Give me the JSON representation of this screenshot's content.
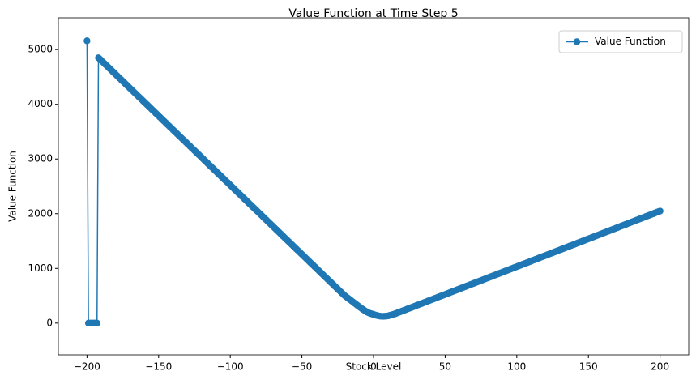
{
  "chart_data": {
    "type": "line",
    "title": "Value Function at Time Step 5",
    "xlabel": "Stock Level",
    "ylabel": "Value Function",
    "x": [
      -200,
      -199,
      -198,
      -197,
      -196,
      -195,
      -194,
      -193,
      -192,
      -191,
      -190,
      -189,
      -188,
      -187,
      -186,
      -185,
      -184,
      -183,
      -182,
      -181,
      -180,
      -179,
      -178,
      -177,
      -176,
      -175,
      -174,
      -173,
      -172,
      -171,
      -170,
      -169,
      -168,
      -167,
      -166,
      -165,
      -164,
      -163,
      -162,
      -161,
      -160,
      -159,
      -158,
      -157,
      -156,
      -155,
      -154,
      -153,
      -152,
      -151,
      -150,
      -149,
      -148,
      -147,
      -146,
      -145,
      -144,
      -143,
      -142,
      -141,
      -140,
      -139,
      -138,
      -137,
      -136,
      -135,
      -134,
      -133,
      -132,
      -131,
      -130,
      -129,
      -128,
      -127,
      -126,
      -125,
      -124,
      -123,
      -122,
      -121,
      -120,
      -119,
      -118,
      -117,
      -116,
      -115,
      -114,
      -113,
      -112,
      -111,
      -110,
      -109,
      -108,
      -107,
      -106,
      -105,
      -104,
      -103,
      -102,
      -101,
      -100,
      -99,
      -98,
      -97,
      -96,
      -95,
      -94,
      -93,
      -92,
      -91,
      -90,
      -89,
      -88,
      -87,
      -86,
      -85,
      -84,
      -83,
      -82,
      -81,
      -80,
      -79,
      -78,
      -77,
      -76,
      -75,
      -74,
      -73,
      -72,
      -71,
      -70,
      -69,
      -68,
      -67,
      -66,
      -65,
      -64,
      -63,
      -62,
      -61,
      -60,
      -59,
      -58,
      -57,
      -56,
      -55,
      -54,
      -53,
      -52,
      -51,
      -50,
      -49,
      -48,
      -47,
      -46,
      -45,
      -44,
      -43,
      -42,
      -41,
      -40,
      -39,
      -38,
      -37,
      -36,
      -35,
      -34,
      -33,
      -32,
      -31,
      -30,
      -29,
      -28,
      -27,
      -26,
      -25,
      -24,
      -23,
      -22,
      -21,
      -20,
      -19,
      -18,
      -17,
      -16,
      -15,
      -14,
      -13,
      -12,
      -11,
      -10,
      -9,
      -8,
      -7,
      -6,
      -5,
      -4,
      -3,
      -2,
      -1,
      0,
      1,
      2,
      3,
      4,
      5,
      6,
      7,
      8,
      9,
      10,
      11,
      12,
      13,
      14,
      15,
      16,
      17,
      18,
      19,
      20,
      21,
      22,
      23,
      24,
      25,
      26,
      27,
      28,
      29,
      30,
      31,
      32,
      33,
      34,
      35,
      36,
      37,
      38,
      39,
      40,
      41,
      42,
      43,
      44,
      45,
      46,
      47,
      48,
      49,
      50,
      51,
      52,
      53,
      54,
      55,
      56,
      57,
      58,
      59,
      60,
      61,
      62,
      63,
      64,
      65,
      66,
      67,
      68,
      69,
      70,
      71,
      72,
      73,
      74,
      75,
      76,
      77,
      78,
      79,
      80,
      81,
      82,
      83,
      84,
      85,
      86,
      87,
      88,
      89,
      90,
      91,
      92,
      93,
      94,
      95,
      96,
      97,
      98,
      99,
      100,
      101,
      102,
      103,
      104,
      105,
      106,
      107,
      108,
      109,
      110,
      111,
      112,
      113,
      114,
      115,
      116,
      117,
      118,
      119,
      120,
      121,
      122,
      123,
      124,
      125,
      126,
      127,
      128,
      129,
      130,
      131,
      132,
      133,
      134,
      135,
      136,
      137,
      138,
      139,
      140,
      141,
      142,
      143,
      144,
      145,
      146,
      147,
      148,
      149,
      150,
      151,
      152,
      153,
      154,
      155,
      156,
      157,
      158,
      159,
      160,
      161,
      162,
      163,
      164,
      165,
      166,
      167,
      168,
      169,
      170,
      171,
      172,
      173,
      174,
      175,
      176,
      177,
      178,
      179,
      180,
      181,
      182,
      183,
      184,
      185,
      186,
      187,
      188,
      189,
      190,
      191,
      192,
      193,
      194,
      195,
      196,
      197,
      198,
      199,
      200
    ],
    "series": [
      {
        "name": "Value Function",
        "color": "#1f77b4",
        "values": [
          5160,
          0,
          0,
          0,
          0,
          0,
          0,
          0,
          4850,
          4825,
          4800,
          4774,
          4749,
          4724,
          4698,
          4673,
          4648,
          4622,
          4597,
          4572,
          4546,
          4521,
          4496,
          4470,
          4445,
          4420,
          4394,
          4369,
          4344,
          4319,
          4293,
          4268,
          4243,
          4217,
          4192,
          4167,
          4141,
          4116,
          4091,
          4066,
          4040,
          4015,
          3990,
          3964,
          3939,
          3914,
          3888,
          3863,
          3838,
          3813,
          3787,
          3762,
          3737,
          3711,
          3686,
          3661,
          3635,
          3610,
          3585,
          3560,
          3534,
          3509,
          3484,
          3458,
          3433,
          3408,
          3382,
          3357,
          3332,
          3307,
          3281,
          3256,
          3231,
          3205,
          3180,
          3155,
          3129,
          3104,
          3079,
          3054,
          3028,
          3003,
          2978,
          2952,
          2927,
          2902,
          2876,
          2851,
          2826,
          2801,
          2775,
          2750,
          2725,
          2699,
          2674,
          2649,
          2623,
          2598,
          2573,
          2548,
          2522,
          2497,
          2472,
          2446,
          2421,
          2396,
          2370,
          2345,
          2320,
          2295,
          2269,
          2244,
          2219,
          2193,
          2168,
          2143,
          2117,
          2092,
          2067,
          2042,
          2016,
          1991,
          1966,
          1940,
          1915,
          1890,
          1864,
          1839,
          1814,
          1789,
          1763,
          1738,
          1713,
          1687,
          1662,
          1637,
          1611,
          1586,
          1561,
          1536,
          1510,
          1485,
          1460,
          1434,
          1409,
          1384,
          1358,
          1333,
          1308,
          1283,
          1257,
          1232,
          1207,
          1181,
          1156,
          1131,
          1105,
          1080,
          1055,
          1030,
          1004,
          979,
          954,
          928,
          903,
          878,
          852,
          827,
          802,
          777,
          751,
          726,
          701,
          675,
          650,
          625,
          599,
          574,
          549,
          524,
          500,
          480,
          460,
          440,
          420,
          400,
          380,
          360,
          340,
          320,
          300,
          280,
          262,
          244,
          226,
          210,
          196,
          184,
          174,
          166,
          160,
          150,
          142,
          135,
          130,
          126,
          124,
          124,
          126,
          128,
          132,
          138,
          146,
          154,
          162,
          170,
          180,
          190,
          200,
          210,
          220,
          230,
          240,
          250,
          261,
          271,
          281,
          291,
          301,
          311,
          322,
          332,
          342,
          352,
          362,
          372,
          382,
          393,
          403,
          413,
          423,
          433,
          443,
          453,
          463,
          474,
          484,
          494,
          504,
          514,
          524,
          534,
          545,
          555,
          565,
          575,
          585,
          595,
          605,
          616,
          626,
          636,
          646,
          656,
          666,
          677,
          687,
          697,
          707,
          717,
          727,
          737,
          748,
          758,
          768,
          778,
          788,
          798,
          809,
          819,
          829,
          839,
          849,
          859,
          870,
          880,
          890,
          900,
          910,
          920,
          930,
          941,
          951,
          961,
          971,
          981,
          991,
          1002,
          1012,
          1022,
          1032,
          1042,
          1052,
          1062,
          1073,
          1083,
          1093,
          1103,
          1113,
          1123,
          1134,
          1144,
          1154,
          1164,
          1174,
          1184,
          1195,
          1205,
          1215,
          1225,
          1235,
          1245,
          1255,
          1266,
          1276,
          1286,
          1296,
          1306,
          1316,
          1327,
          1337,
          1347,
          1357,
          1367,
          1377,
          1388,
          1398,
          1408,
          1418,
          1428,
          1438,
          1448,
          1459,
          1469,
          1479,
          1489,
          1499,
          1509,
          1520,
          1530,
          1540,
          1550,
          1560,
          1570,
          1581,
          1591,
          1601,
          1611,
          1621,
          1631,
          1642,
          1652,
          1662,
          1672,
          1682,
          1692,
          1703,
          1713,
          1723,
          1733,
          1743,
          1753,
          1764,
          1774,
          1784,
          1794,
          1804,
          1814,
          1825,
          1835,
          1845,
          1855,
          1865,
          1875,
          1886,
          1896,
          1906,
          1916,
          1926,
          1936,
          1947,
          1957,
          1967,
          1977,
          1987,
          1997,
          2008,
          2018,
          2028,
          2038,
          2048
        ]
      }
    ],
    "xlim": [
      -220,
      220
    ],
    "ylim": [
      -580,
      5580
    ],
    "xticks": [
      {
        "value": -200,
        "label": "−200"
      },
      {
        "value": -150,
        "label": "−150"
      },
      {
        "value": -100,
        "label": "−100"
      },
      {
        "value": -50,
        "label": "−50"
      },
      0,
      50,
      100,
      150,
      200
    ],
    "yticks": [
      0,
      1000,
      2000,
      3000,
      4000,
      5000
    ],
    "legend": "upper right",
    "marker": "o"
  }
}
